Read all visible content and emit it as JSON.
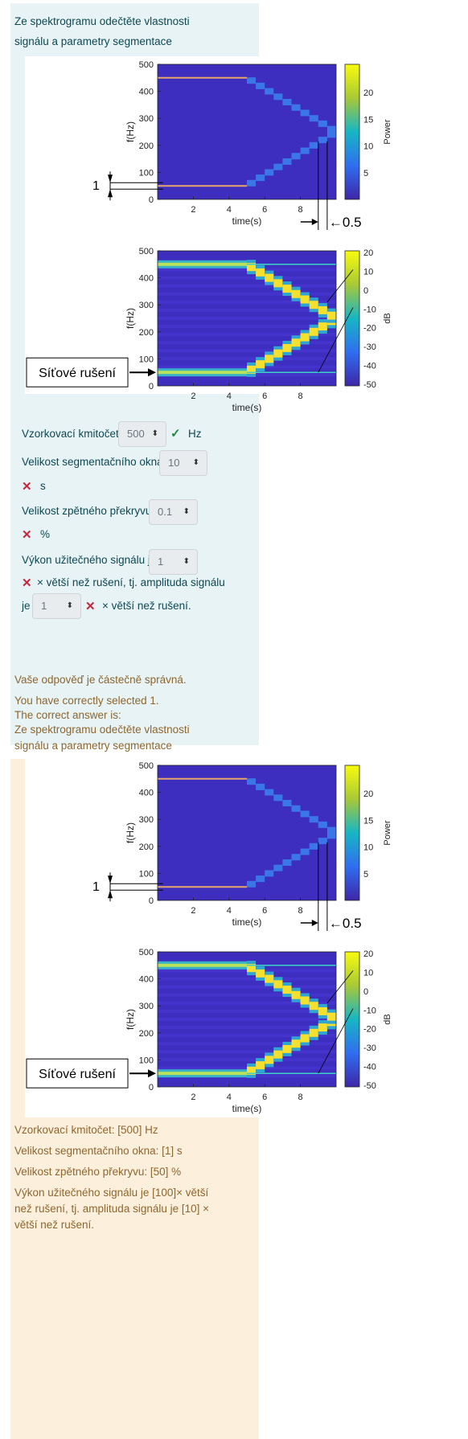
{
  "question": {
    "intro_line1": "Ze spektrogramu odečtěte vlastnosti",
    "intro_line2": "signálu a parametry segmentace",
    "fields": {
      "sampling_label": "Vzorkovací kmitočet:",
      "sampling_value": "500",
      "sampling_unit": "Hz",
      "window_label": "Velikost segmentačního okna:",
      "window_value": "10",
      "window_unit": "s",
      "overlap_label": "Velikost zpětného překryvu:",
      "overlap_value": "0.1",
      "overlap_unit": "%",
      "power_label": "Výkon užitečného signálu je",
      "power_value": "1",
      "power_suffix": "× větší než rušení, tj. amplituda signálu",
      "amp_prefix": "je",
      "amp_value": "1",
      "amp_suffix": "× větší než rušení."
    },
    "marks": {
      "ok": "✓",
      "wrong": "✕"
    }
  },
  "feedback": {
    "partial": "Vaše odpověď je částečně správná.",
    "selected": "You have correctly selected 1.",
    "correct_is": "The correct answer is:",
    "intro_line1": "Ze spektrogramu odečtěte vlastnosti",
    "intro_line2": "signálu a parametry segmentace",
    "ans_sampling": "Vzorkovací kmitočet: [500] Hz",
    "ans_window": "Velikost segmentačního okna: [1] s",
    "ans_overlap": "Velikost zpětného překryvu: [50] %",
    "ans_power_1": "Výkon užitečného signálu je [100]× větší",
    "ans_power_2": "než rušení, tj. amplituda signálu je [10] ×",
    "ans_power_3": "větší než rušení."
  },
  "figure": {
    "annot_one": "1",
    "annot_half": "←0.5",
    "noise_label": "Síťové rušení"
  },
  "chart_data": [
    {
      "type": "heatmap",
      "title": "",
      "xlabel": "time(s)",
      "ylabel": "f(Hz)",
      "x_ticks": [
        "2",
        "4",
        "6",
        "8"
      ],
      "y_ticks": [
        "0",
        "100",
        "200",
        "300",
        "400",
        "500"
      ],
      "xlim": [
        0,
        10
      ],
      "ylim": [
        0,
        500
      ],
      "colorbar_label": "Power",
      "colorbar_ticks": [
        "5",
        "10",
        "15",
        "20"
      ],
      "series": [
        {
          "name": "tone",
          "time_s": [
            0,
            5
          ],
          "freq_hz": [
            50,
            50
          ]
        },
        {
          "name": "tone mirror",
          "time_s": [
            0,
            5
          ],
          "freq_hz": [
            450,
            450
          ]
        },
        {
          "name": "chirp up",
          "time_s": [
            5,
            10
          ],
          "freq_hz": [
            50,
            250
          ]
        },
        {
          "name": "chirp down",
          "time_s": [
            5,
            10
          ],
          "freq_hz": [
            450,
            250
          ]
        }
      ]
    },
    {
      "type": "heatmap",
      "title": "",
      "xlabel": "time(s)",
      "ylabel": "f(Hz)",
      "x_ticks": [
        "2",
        "4",
        "6",
        "8"
      ],
      "y_ticks": [
        "0",
        "100",
        "200",
        "300",
        "400",
        "500"
      ],
      "xlim": [
        0,
        10
      ],
      "ylim": [
        0,
        500
      ],
      "colorbar_label": "dB",
      "colorbar_ticks": [
        "20",
        "10",
        "0",
        "-10",
        "-20",
        "-30",
        "-40",
        "-50"
      ],
      "series": [
        {
          "name": "tone",
          "time_s": [
            0,
            5
          ],
          "freq_hz": [
            50,
            50
          ]
        },
        {
          "name": "tone mirror",
          "time_s": [
            0,
            5
          ],
          "freq_hz": [
            450,
            450
          ]
        },
        {
          "name": "chirp up",
          "time_s": [
            5,
            10
          ],
          "freq_hz": [
            50,
            250
          ]
        },
        {
          "name": "chirp down",
          "time_s": [
            5,
            10
          ],
          "freq_hz": [
            450,
            250
          ]
        },
        {
          "name": "noise",
          "time_s": [
            5,
            10
          ],
          "freq_hz": [
            50,
            50
          ]
        },
        {
          "name": "noise mirror",
          "time_s": [
            5,
            10
          ],
          "freq_hz": [
            450,
            450
          ]
        }
      ]
    }
  ],
  "colors": {
    "question_bg": "#e7f3f5",
    "feedback_bg": "#fcefdc",
    "question_text": "#0e4852",
    "feedback_text": "#8e662e",
    "ok": "#1e8a44",
    "wrong": "#c5283d",
    "heat_bg": "#3d2ec0",
    "heat_hot": "#f5df2f"
  }
}
